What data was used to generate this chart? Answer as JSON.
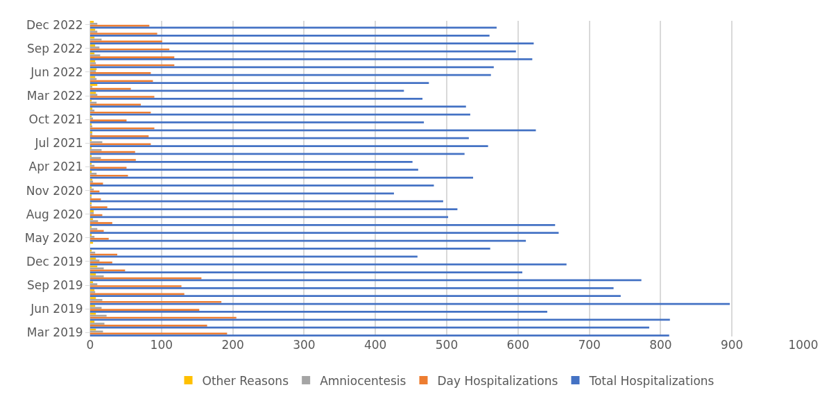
{
  "chart_data": {
    "type": "bar",
    "orientation": "horizontal",
    "categories": [
      "Dec 2022",
      null,
      null,
      "Sep 2022",
      null,
      null,
      "Jun 2022",
      null,
      null,
      "Mar 2022",
      null,
      null,
      "Oct 2021",
      null,
      null,
      "Jul 2021",
      null,
      null,
      "Apr 2021",
      null,
      null,
      "Nov 2020",
      null,
      null,
      "Aug 2020",
      null,
      null,
      "May 2020",
      null,
      null,
      "Dec 2019",
      null,
      null,
      "Sep 2019",
      null,
      null,
      "Jun 2019",
      null,
      null,
      "Mar 2019"
    ],
    "series": [
      {
        "name": "Other Reasons",
        "color": "#ffc000",
        "values": [
          5,
          7,
          6,
          7,
          6,
          7,
          9,
          7,
          10,
          8,
          2,
          3,
          2,
          1,
          3,
          2,
          1,
          1,
          2,
          2,
          3,
          2,
          2,
          2,
          5,
          4,
          1,
          2,
          4,
          2,
          8,
          10,
          8,
          4,
          6,
          8,
          7,
          8,
          6,
          8
        ]
      },
      {
        "name": "Amniocentesis",
        "color": "#a5a5a5",
        "values": [
          10,
          10,
          16,
          13,
          14,
          8,
          8,
          9,
          3,
          10,
          9,
          6,
          4,
          3,
          3,
          17,
          16,
          15,
          6,
          9,
          4,
          5,
          1,
          2,
          5,
          11,
          10,
          6,
          0,
          7,
          13,
          19,
          19,
          10,
          7,
          17,
          16,
          23,
          20,
          18
        ]
      },
      {
        "name": "Day Hospitalizations",
        "color": "#ed7d31",
        "values": [
          83,
          94,
          101,
          111,
          118,
          118,
          85,
          88,
          57,
          90,
          71,
          85,
          51,
          90,
          82,
          85,
          63,
          64,
          51,
          53,
          18,
          13,
          15,
          24,
          17,
          31,
          19,
          26,
          0,
          38,
          31,
          49,
          156,
          128,
          132,
          184,
          153,
          205,
          164,
          192
        ]
      },
      {
        "name": "Total Hospitalizations",
        "color": "#4472c4",
        "values": [
          570,
          560,
          622,
          597,
          620,
          566,
          562,
          475,
          440,
          466,
          527,
          533,
          468,
          625,
          531,
          558,
          525,
          452,
          460,
          537,
          482,
          426,
          495,
          515,
          502,
          652,
          657,
          611,
          561,
          459,
          668,
          606,
          773,
          734,
          744,
          897,
          641,
          813,
          784,
          812
        ]
      }
    ],
    "xlim": [
      0,
      1000
    ],
    "xticks": [
      0,
      100,
      200,
      300,
      400,
      500,
      600,
      700,
      800,
      900,
      1000
    ],
    "grid": "x",
    "legend": "bottom"
  }
}
